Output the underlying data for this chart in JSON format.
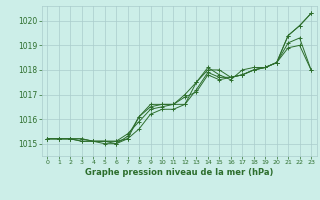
{
  "title": "Graphe pression niveau de la mer (hPa)",
  "bg_color": "#cceee8",
  "grid_color": "#aacccc",
  "line_color": "#2d6e2d",
  "xlim": [
    -0.5,
    23.5
  ],
  "ylim": [
    1014.5,
    1020.6
  ],
  "yticks": [
    1015,
    1016,
    1017,
    1018,
    1019,
    1020
  ],
  "xticks": [
    0,
    1,
    2,
    3,
    4,
    5,
    6,
    7,
    8,
    9,
    10,
    11,
    12,
    13,
    14,
    15,
    16,
    17,
    18,
    19,
    20,
    21,
    22,
    23
  ],
  "series": [
    [
      1015.2,
      1015.2,
      1015.2,
      1015.2,
      1015.1,
      1015.1,
      1015.1,
      1015.4,
      1015.9,
      1016.4,
      1016.5,
      1016.6,
      1017.0,
      1017.5,
      1018.0,
      1018.0,
      1017.7,
      1017.8,
      1018.0,
      1018.1,
      1018.3,
      1019.4,
      1019.8,
      1020.3
    ],
    [
      1015.2,
      1015.2,
      1015.2,
      1015.1,
      1015.1,
      1015.1,
      1015.1,
      1015.2,
      1016.1,
      1016.5,
      1016.6,
      1016.6,
      1016.9,
      1017.1,
      1017.8,
      1017.6,
      1017.7,
      1017.8,
      1018.0,
      1018.1,
      1018.3,
      1019.4,
      1019.8,
      1020.3
    ],
    [
      1015.2,
      1015.2,
      1015.2,
      1015.2,
      1015.1,
      1015.1,
      1015.0,
      1015.3,
      1016.1,
      1016.6,
      1016.6,
      1016.6,
      1016.6,
      1017.2,
      1017.9,
      1017.7,
      1017.7,
      1017.8,
      1018.0,
      1018.1,
      1018.3,
      1019.1,
      1019.3,
      1018.0
    ],
    [
      1015.2,
      1015.2,
      1015.2,
      1015.1,
      1015.1,
      1015.0,
      1015.0,
      1015.2,
      1015.6,
      1016.2,
      1016.4,
      1016.4,
      1016.6,
      1017.5,
      1018.1,
      1017.8,
      1017.6,
      1018.0,
      1018.1,
      1018.1,
      1018.3,
      1018.9,
      1019.0,
      1018.0
    ]
  ]
}
